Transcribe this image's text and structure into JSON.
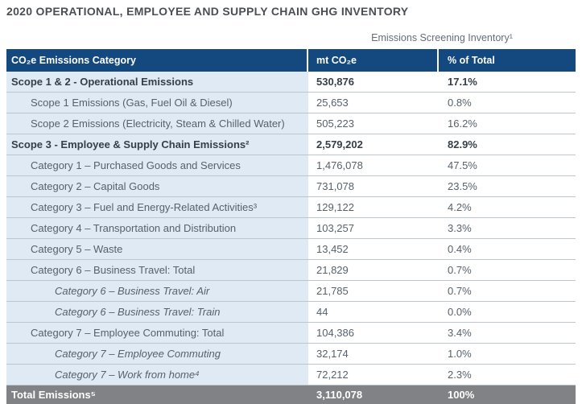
{
  "page": {
    "title": "2020 OPERATIONAL, EMPLOYEE AND SUPPLY CHAIN GHG INVENTORY",
    "table_caption": "Emissions Screening Inventory¹"
  },
  "table": {
    "columns": [
      "CO₂e Emissions Category",
      "mt CO₂e",
      "% of Total"
    ],
    "rows": [
      {
        "label": "Scope 1 & 2 - Operational Emissions",
        "value": "530,876",
        "pct": "17.1%",
        "level": 0,
        "style": "section"
      },
      {
        "label": "Scope 1 Emissions (Gas, Fuel Oil & Diesel)",
        "value": "25,653",
        "pct": "0.8%",
        "level": 1,
        "style": "normal"
      },
      {
        "label": "Scope 2 Emissions (Electricity, Steam & Chilled Water)",
        "value": "505,223",
        "pct": "16.2%",
        "level": 1,
        "style": "normal"
      },
      {
        "label": "Scope 3 - Employee & Supply Chain Emissions²",
        "value": "2,579,202",
        "pct": "82.9%",
        "level": 0,
        "style": "section"
      },
      {
        "label": "Category 1 – Purchased Goods and Services",
        "value": "1,476,078",
        "pct": "47.5%",
        "level": 1,
        "style": "normal"
      },
      {
        "label": "Category 2 – Capital Goods",
        "value": "731,078",
        "pct": "23.5%",
        "level": 1,
        "style": "normal"
      },
      {
        "label": "Category 3 – Fuel and Energy-Related Activities³",
        "value": "129,122",
        "pct": "4.2%",
        "level": 1,
        "style": "normal"
      },
      {
        "label": "Category 4 – Transportation and Distribution",
        "value": "103,257",
        "pct": "3.3%",
        "level": 1,
        "style": "normal"
      },
      {
        "label": "Category 5 – Waste",
        "value": "13,452",
        "pct": "0.4%",
        "level": 1,
        "style": "normal"
      },
      {
        "label": "Category 6 – Business Travel: Total",
        "value": "21,829",
        "pct": "0.7%",
        "level": 1,
        "style": "normal"
      },
      {
        "label": "Category 6 – Business Travel: Air",
        "value": "21,785",
        "pct": "0.7%",
        "level": 2,
        "style": "italic"
      },
      {
        "label": "Category 6 – Business Travel: Train",
        "value": "44",
        "pct": "0.0%",
        "level": 2,
        "style": "italic"
      },
      {
        "label": "Category 7 – Employee Commuting: Total",
        "value": "104,386",
        "pct": "3.4%",
        "level": 1,
        "style": "normal"
      },
      {
        "label": "Category 7 – Employee Commuting",
        "value": "32,174",
        "pct": "1.0%",
        "level": 2,
        "style": "italic"
      },
      {
        "label": "Category 7 – Work from home⁴",
        "value": "72,212",
        "pct": "2.3%",
        "level": 2,
        "style": "italic"
      },
      {
        "label": "Total Emissions⁵",
        "value": "3,110,078",
        "pct": "100%",
        "level": 0,
        "style": "total"
      }
    ]
  },
  "colors": {
    "header_bg": "#13497e",
    "total_bg": "#808285",
    "category_col_bg": "#dfeaf4",
    "row_line": "#bdc6cd"
  }
}
